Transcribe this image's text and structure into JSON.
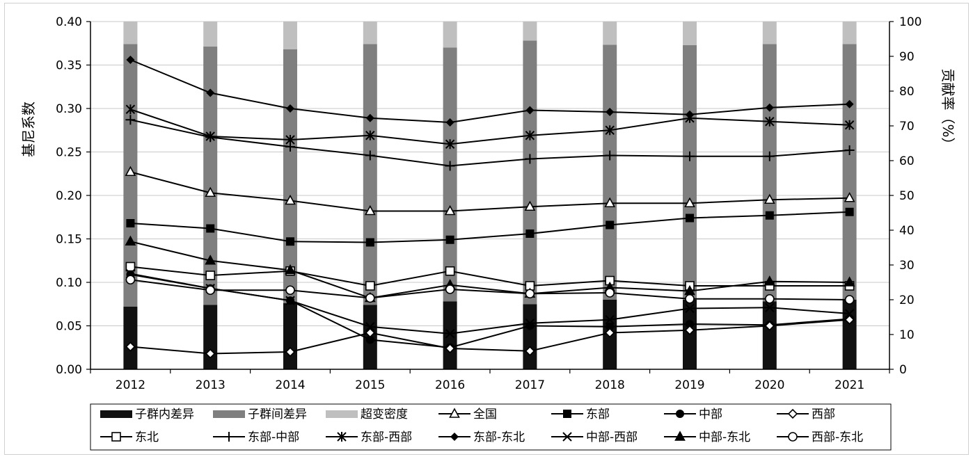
{
  "chart_data": {
    "type": "bar",
    "x": [
      "2012",
      "2013",
      "2014",
      "2015",
      "2016",
      "2017",
      "2018",
      "2019",
      "2020",
      "2021"
    ],
    "ylabel_left": "基尼系数",
    "ylabel_right": "贡献率（%）",
    "ylim_left": [
      0,
      0.4
    ],
    "ylim_right": [
      0,
      100
    ],
    "yticks_left": [
      "0.00",
      "0.05",
      "0.10",
      "0.15",
      "0.20",
      "0.25",
      "0.30",
      "0.35",
      "0.40"
    ],
    "yticks_right": [
      "0",
      "10",
      "20",
      "30",
      "40",
      "50",
      "60",
      "70",
      "80",
      "90",
      "100"
    ],
    "grid": "horizontal",
    "legend_position": "bottom",
    "bar_series": [
      {
        "name": "子群内差异",
        "color": "#111111",
        "values": [
          18,
          18.5,
          19,
          18.5,
          19.5,
          18.7,
          20,
          20,
          19.5,
          20
        ]
      },
      {
        "name": "子群间差异",
        "color": "#7f7f7f",
        "values": [
          75.5,
          74.3,
          73,
          75,
          73,
          75.8,
          73.3,
          73.2,
          74,
          73.5
        ]
      },
      {
        "name": "超变密度",
        "color": "#bfbfbf",
        "values": [
          6.5,
          7.2,
          8,
          6.5,
          7.5,
          5.5,
          6.7,
          6.8,
          6.5,
          6.5
        ]
      }
    ],
    "line_series": [
      {
        "name": "全国",
        "marker": "triangle-open",
        "values": [
          0.227,
          0.203,
          0.194,
          0.182,
          0.182,
          0.187,
          0.191,
          0.191,
          0.195,
          0.197
        ]
      },
      {
        "name": "东部",
        "marker": "square-filled",
        "values": [
          0.168,
          0.162,
          0.147,
          0.146,
          0.149,
          0.156,
          0.166,
          0.174,
          0.177,
          0.181
        ]
      },
      {
        "name": "中部",
        "marker": "circle-filled",
        "values": [
          0.109,
          0.093,
          0.079,
          0.034,
          0.025,
          0.05,
          0.049,
          0.052,
          0.051,
          0.058
        ]
      },
      {
        "name": "西部",
        "marker": "diamond-open",
        "values": [
          0.026,
          0.018,
          0.02,
          0.042,
          0.024,
          0.021,
          0.042,
          0.045,
          0.05,
          0.057
        ]
      },
      {
        "name": "东北",
        "marker": "square-open",
        "values": [
          0.118,
          0.108,
          0.113,
          0.096,
          0.113,
          0.096,
          0.102,
          0.096,
          0.096,
          0.096
        ]
      },
      {
        "name": "东部-中部",
        "marker": "plus",
        "values": [
          0.287,
          0.267,
          0.256,
          0.246,
          0.234,
          0.242,
          0.246,
          0.245,
          0.245,
          0.252
        ]
      },
      {
        "name": "东部-西部",
        "marker": "asterisk",
        "values": [
          0.299,
          0.268,
          0.264,
          0.269,
          0.259,
          0.269,
          0.275,
          0.289,
          0.285,
          0.281
        ]
      },
      {
        "name": "东部-东北",
        "marker": "diamond-filled",
        "values": [
          0.356,
          0.318,
          0.3,
          0.289,
          0.284,
          0.298,
          0.296,
          0.293,
          0.301,
          0.305
        ]
      },
      {
        "name": "中部-西部",
        "marker": "x",
        "values": [
          0.11,
          0.093,
          0.079,
          0.049,
          0.041,
          0.053,
          0.057,
          0.07,
          0.071,
          0.064
        ]
      },
      {
        "name": "中部-东北",
        "marker": "triangle-filled",
        "values": [
          0.147,
          0.125,
          0.114,
          0.082,
          0.097,
          0.087,
          0.094,
          0.09,
          0.101,
          0.1
        ]
      },
      {
        "name": "西部-东北",
        "marker": "circle-open",
        "values": [
          0.103,
          0.091,
          0.091,
          0.082,
          0.092,
          0.087,
          0.088,
          0.081,
          0.081,
          0.08
        ]
      }
    ]
  }
}
